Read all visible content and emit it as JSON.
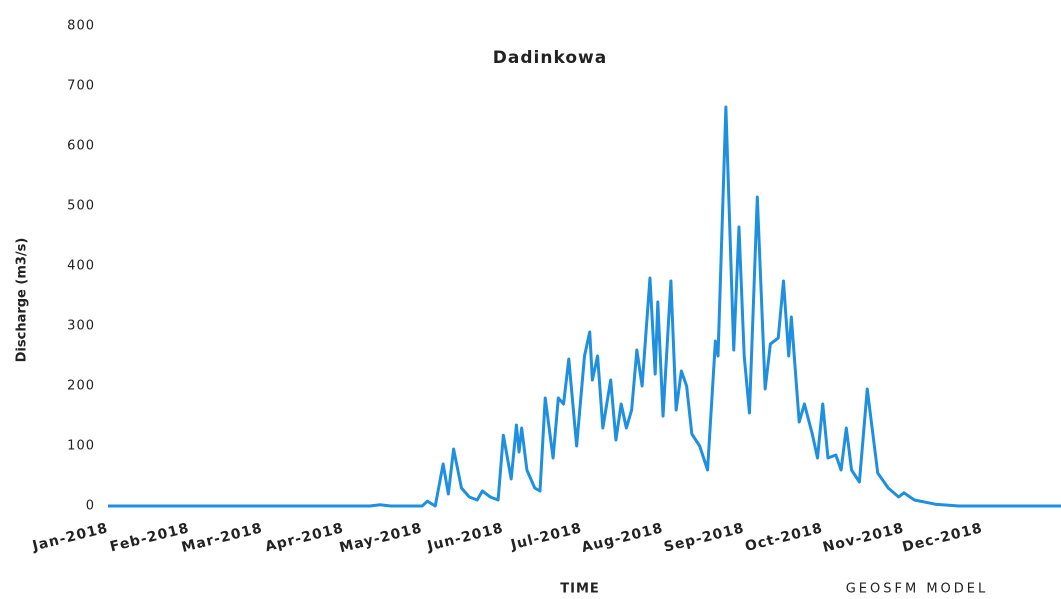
{
  "chart_data": {
    "type": "line",
    "title": "Dadinkowa",
    "y_label": "Discharge (m3/s)",
    "x_label": "TIME",
    "annotation": "GEOSFM MODEL",
    "x": [
      0,
      60,
      100,
      104,
      108,
      120,
      122,
      125,
      128,
      130,
      132,
      135,
      138,
      141,
      143,
      146,
      149,
      151,
      154,
      156,
      157,
      158,
      160,
      163,
      165,
      167,
      170,
      172,
      174,
      176,
      179,
      182,
      184,
      185,
      187,
      189,
      192,
      194,
      196,
      198,
      200,
      202,
      204,
      207,
      209,
      210,
      212,
      215,
      217,
      219,
      221,
      223,
      226,
      229,
      232,
      233,
      236,
      239,
      241,
      243,
      245,
      248,
      251,
      253,
      256,
      258,
      260,
      261,
      264,
      266,
      269,
      271,
      273,
      275,
      278,
      280,
      282,
      284,
      287,
      290,
      294,
      298,
      302,
      304,
      308,
      316,
      325,
      364
    ],
    "series": [
      {
        "name": "Discharge",
        "color": "#1f8fe0",
        "values": [
          0,
          0,
          0,
          2,
          0,
          0,
          8,
          0,
          70,
          20,
          95,
          30,
          15,
          10,
          25,
          15,
          10,
          118,
          45,
          135,
          90,
          130,
          60,
          30,
          25,
          180,
          80,
          180,
          170,
          245,
          100,
          250,
          290,
          210,
          250,
          130,
          210,
          110,
          170,
          130,
          160,
          260,
          200,
          380,
          220,
          340,
          150,
          375,
          160,
          225,
          200,
          120,
          100,
          60,
          275,
          250,
          665,
          260,
          465,
          250,
          155,
          515,
          195,
          270,
          280,
          375,
          250,
          315,
          140,
          170,
          120,
          80,
          170,
          80,
          85,
          60,
          130,
          60,
          40,
          195,
          55,
          30,
          15,
          22,
          10,
          3,
          0,
          0
        ]
      }
    ],
    "xlim": [
      0,
      364
    ],
    "xticks": [
      {
        "value": 0,
        "label": "Jan-2018"
      },
      {
        "value": 31,
        "label": "Feb-2018"
      },
      {
        "value": 59,
        "label": "Mar-2018"
      },
      {
        "value": 90,
        "label": "Apr-2018"
      },
      {
        "value": 120,
        "label": "May-2018"
      },
      {
        "value": 151,
        "label": "Jun-2018"
      },
      {
        "value": 181,
        "label": "Jul-2018"
      },
      {
        "value": 212,
        "label": "Aug-2018"
      },
      {
        "value": 243,
        "label": "Sep-2018"
      },
      {
        "value": 273,
        "label": "Oct-2018"
      },
      {
        "value": 304,
        "label": "Nov-2018"
      },
      {
        "value": 334,
        "label": "Dec-2018"
      }
    ],
    "ylim": [
      0,
      800
    ],
    "yticks": [
      0,
      100,
      200,
      300,
      400,
      500,
      600,
      700,
      800
    ],
    "grid": false
  }
}
